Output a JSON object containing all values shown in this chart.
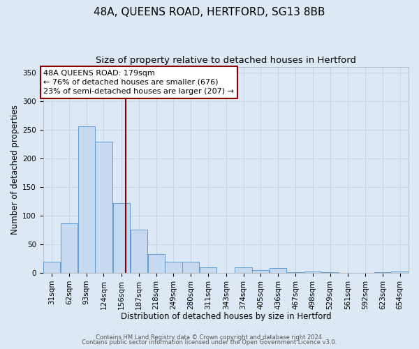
{
  "title": "48A, QUEENS ROAD, HERTFORD, SG13 8BB",
  "subtitle": "Size of property relative to detached houses in Hertford",
  "xlabel": "Distribution of detached houses by size in Hertford",
  "ylabel": "Number of detached properties",
  "footer_line1": "Contains HM Land Registry data © Crown copyright and database right 2024.",
  "footer_line2": "Contains public sector information licensed under the Open Government Licence v3.0.",
  "bin_labels": [
    "31sqm",
    "62sqm",
    "93sqm",
    "124sqm",
    "156sqm",
    "187sqm",
    "218sqm",
    "249sqm",
    "280sqm",
    "311sqm",
    "343sqm",
    "374sqm",
    "405sqm",
    "436sqm",
    "467sqm",
    "498sqm",
    "529sqm",
    "561sqm",
    "592sqm",
    "623sqm",
    "654sqm"
  ],
  "bin_edges": [
    31,
    62,
    93,
    124,
    156,
    187,
    218,
    249,
    280,
    311,
    343,
    374,
    405,
    436,
    467,
    498,
    529,
    561,
    592,
    623,
    654
  ],
  "bin_width": 31,
  "bar_heights": [
    20,
    87,
    256,
    229,
    122,
    76,
    33,
    20,
    20,
    10,
    0,
    10,
    5,
    8,
    1,
    3,
    1,
    0,
    0,
    1,
    2
  ],
  "bar_color": "#c6d9f0",
  "bar_edge_color": "#5b9bd5",
  "grid_color": "#c8d4e0",
  "bg_color": "#dce9f5",
  "vline_x": 179,
  "vline_color": "#8b0000",
  "annotation_text_line1": "48A QUEENS ROAD: 179sqm",
  "annotation_text_line2": "← 76% of detached houses are smaller (676)",
  "annotation_text_line3": "23% of semi-detached houses are larger (207) →",
  "annotation_box_color": "#8b0000",
  "annotation_bg": "#ffffff",
  "ylim": [
    0,
    360
  ],
  "yticks": [
    0,
    50,
    100,
    150,
    200,
    250,
    300,
    350
  ],
  "title_fontsize": 11,
  "subtitle_fontsize": 9.5,
  "label_fontsize": 8.5,
  "tick_fontsize": 7.5,
  "annotation_fontsize": 8,
  "footer_fontsize": 6.0
}
